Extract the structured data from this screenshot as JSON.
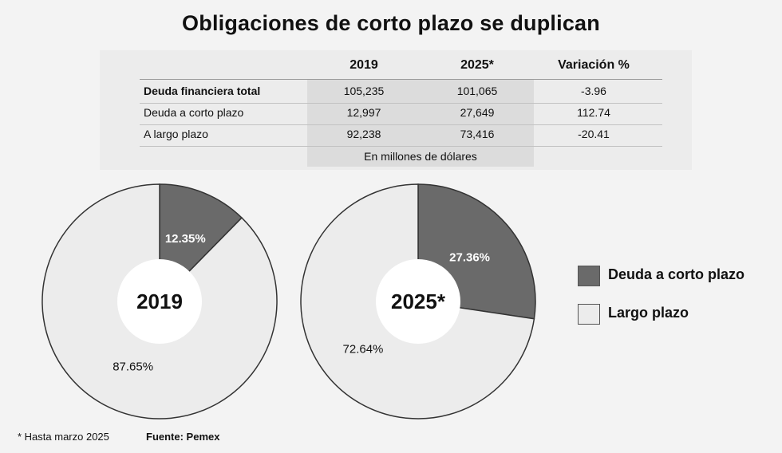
{
  "title": "Obligaciones de corto plazo se duplican",
  "colors": {
    "short": "#6a6a6a",
    "long": "#ececec",
    "outline": "#333333",
    "hole": "#ffffff"
  },
  "table": {
    "columns": [
      "2019",
      "2025*",
      "Variación %"
    ],
    "rows": [
      {
        "label": "Deuda financiera total",
        "values": [
          "105,235",
          "101,065",
          "-3.96"
        ]
      },
      {
        "label": "Deuda a corto plazo",
        "values": [
          "12,997",
          "27,649",
          "112.74"
        ]
      },
      {
        "label": "A largo plazo",
        "values": [
          "92,238",
          "73,416",
          "-20.41"
        ]
      }
    ],
    "unit_note": "En millones de dólares"
  },
  "chart_data": [
    {
      "type": "pie",
      "title": "2019",
      "categories": [
        "Deuda a corto plazo",
        "Largo plazo"
      ],
      "values": [
        12.35,
        87.65
      ],
      "labels": [
        "12.35%",
        "87.65%"
      ]
    },
    {
      "type": "pie",
      "title": "2025*",
      "categories": [
        "Deuda a corto plazo",
        "Largo plazo"
      ],
      "values": [
        27.36,
        72.64
      ],
      "labels": [
        "27.36%",
        "72.64%"
      ]
    }
  ],
  "legend": [
    "Deuda a corto plazo",
    "Largo plazo"
  ],
  "footnote": "* Hasta marzo 2025",
  "source": "Fuente: Pemex"
}
